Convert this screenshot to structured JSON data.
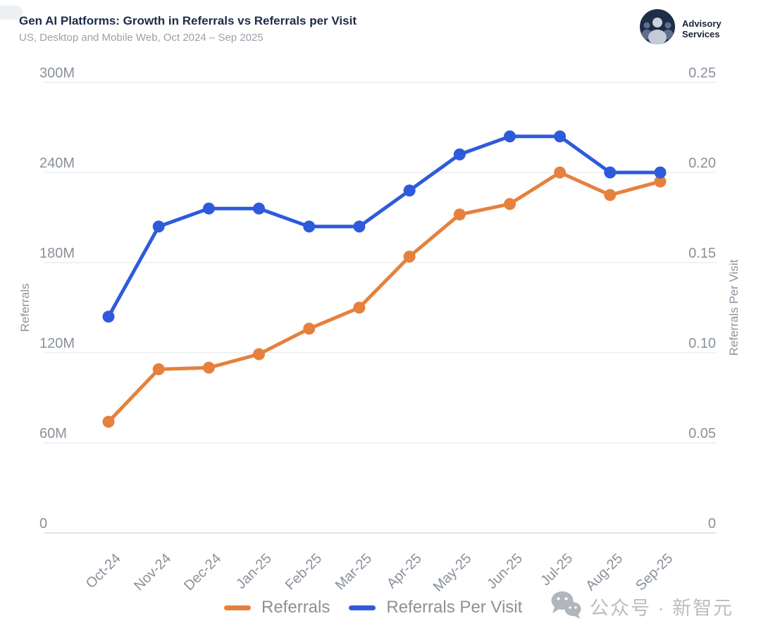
{
  "header": {
    "title": "Gen AI Platforms: Growth in Referrals vs Referrals per Visit",
    "subtitle": "US, Desktop and Mobile Web, Oct 2024 – Sep 2025"
  },
  "logo": {
    "line1": "Advisory",
    "line2": "Services"
  },
  "watermark": {
    "text": "公众号 · 新智元",
    "icon": "wechat-icon"
  },
  "colors": {
    "referrals_orange": "#E5813D",
    "referrals_per_visit_blue": "#2E5BDB",
    "gridline": "#F1F2F4",
    "axis_line": "#E2E4E8",
    "tick_label": "#8A9199",
    "title_navy": "#1C2B4A"
  },
  "chart_data": {
    "type": "line",
    "title": "Gen AI Platforms: Growth in Referrals vs Referrals per Visit",
    "subtitle": "US, Desktop and Mobile Web, Oct 2024 – Sep 2025",
    "grid": true,
    "legend_position": "bottom",
    "categories": [
      "Oct-24",
      "Nov-24",
      "Dec-24",
      "Jan-25",
      "Feb-25",
      "Mar-25",
      "Apr-25",
      "May-25",
      "Jun-25",
      "Jul-25",
      "Aug-25",
      "Sep-25"
    ],
    "series": [
      {
        "name": "Referrals",
        "axis": "left",
        "color": "#E5813D",
        "unit": "millions",
        "values": [
          74,
          109,
          110,
          119,
          136,
          150,
          184,
          212,
          219,
          240,
          225,
          234
        ]
      },
      {
        "name": "Referrals Per Visit",
        "axis": "right",
        "color": "#2E5BDB",
        "unit": "ratio",
        "values": [
          0.12,
          0.17,
          0.18,
          0.18,
          0.17,
          0.17,
          0.19,
          0.21,
          0.22,
          0.22,
          0.2,
          0.2
        ]
      }
    ],
    "left_axis": {
      "label": "Referrals",
      "ticks": [
        "300M",
        "240M",
        "180M",
        "120M",
        "60M",
        "0"
      ],
      "max_millions": 300,
      "range": [
        0,
        300000000
      ]
    },
    "right_axis": {
      "label": "Referrals Per Visit",
      "ticks": [
        "0.25",
        "0.20",
        "0.15",
        "0.10",
        "0.05",
        "0"
      ],
      "max": 0.25,
      "range": [
        0,
        0.25
      ]
    }
  }
}
